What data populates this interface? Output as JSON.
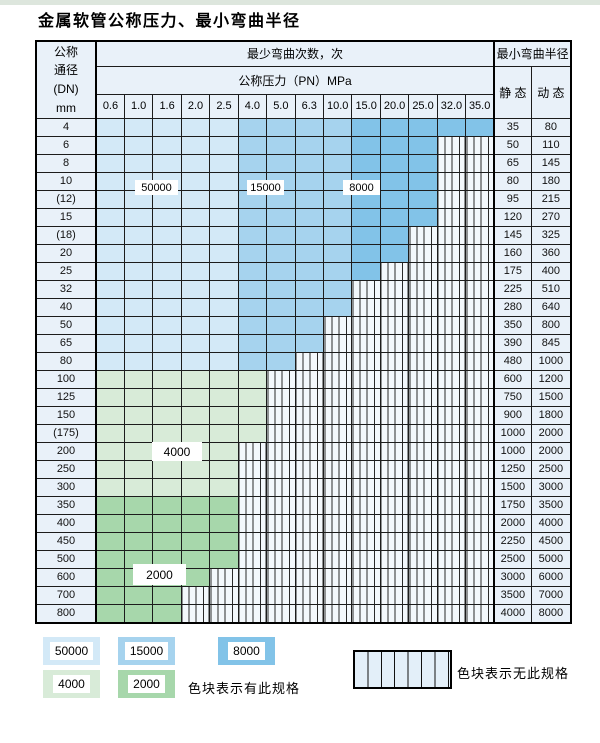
{
  "title": "金属软管公称压力、最小弯曲半径",
  "colors": {
    "c50000": "#d3e9f7",
    "c15000": "#a6d3ee",
    "c8000": "#82c3e8",
    "c4000": "#d8ebd8",
    "c2000": "#a7d7ab",
    "header_bg": "#e9f1f9",
    "hatch_bg": "#f3f8fc"
  },
  "table": {
    "corner_header": [
      "公称",
      "通径",
      "(DN)",
      "mm"
    ],
    "bend_cycles_header": "最少弯曲次数，次",
    "pressure_header": "公称压力（PN）MPa",
    "pressure_columns": [
      "0.6",
      "1.0",
      "1.6",
      "2.0",
      "2.5",
      "4.0",
      "5.0",
      "6.3",
      "10.0",
      "15.0",
      "20.0",
      "25.0",
      "32.0",
      "35.0"
    ],
    "radius_header": "最小弯曲半径",
    "static_header": "静 态",
    "dynamic_header": "动 态",
    "rows": [
      {
        "dn": "4",
        "static": "35",
        "dynamic": "80",
        "last_colored_col": 13,
        "color_group": "blue"
      },
      {
        "dn": "6",
        "static": "50",
        "dynamic": "110",
        "last_colored_col": 11,
        "color_group": "blue"
      },
      {
        "dn": "8",
        "static": "65",
        "dynamic": "145",
        "last_colored_col": 11,
        "color_group": "blue"
      },
      {
        "dn": "10",
        "static": "80",
        "dynamic": "180",
        "last_colored_col": 11,
        "color_group": "blue"
      },
      {
        "dn": "(12)",
        "static": "95",
        "dynamic": "215",
        "last_colored_col": 11,
        "color_group": "blue"
      },
      {
        "dn": "15",
        "static": "120",
        "dynamic": "270",
        "last_colored_col": 11,
        "color_group": "blue"
      },
      {
        "dn": "(18)",
        "static": "145",
        "dynamic": "325",
        "last_colored_col": 10,
        "color_group": "blue"
      },
      {
        "dn": "20",
        "static": "160",
        "dynamic": "360",
        "last_colored_col": 10,
        "color_group": "blue"
      },
      {
        "dn": "25",
        "static": "175",
        "dynamic": "400",
        "last_colored_col": 9,
        "color_group": "blue"
      },
      {
        "dn": "32",
        "static": "225",
        "dynamic": "510",
        "last_colored_col": 8,
        "color_group": "blue"
      },
      {
        "dn": "40",
        "static": "280",
        "dynamic": "640",
        "last_colored_col": 8,
        "color_group": "blue"
      },
      {
        "dn": "50",
        "static": "350",
        "dynamic": "800",
        "last_colored_col": 7,
        "color_group": "blue"
      },
      {
        "dn": "65",
        "static": "390",
        "dynamic": "845",
        "last_colored_col": 7,
        "color_group": "blue"
      },
      {
        "dn": "80",
        "static": "480",
        "dynamic": "1000",
        "last_colored_col": 6,
        "color_group": "blue"
      },
      {
        "dn": "100",
        "static": "600",
        "dynamic": "1200",
        "last_colored_col": 5,
        "color_group": "g4"
      },
      {
        "dn": "125",
        "static": "750",
        "dynamic": "1500",
        "last_colored_col": 5,
        "color_group": "g4"
      },
      {
        "dn": "150",
        "static": "900",
        "dynamic": "1800",
        "last_colored_col": 5,
        "color_group": "g4"
      },
      {
        "dn": "(175)",
        "static": "1000",
        "dynamic": "2000",
        "last_colored_col": 5,
        "color_group": "g4"
      },
      {
        "dn": "200",
        "static": "1000",
        "dynamic": "2000",
        "last_colored_col": 4,
        "color_group": "g4"
      },
      {
        "dn": "250",
        "static": "1250",
        "dynamic": "2500",
        "last_colored_col": 4,
        "color_group": "g4"
      },
      {
        "dn": "300",
        "static": "1500",
        "dynamic": "3000",
        "last_colored_col": 4,
        "color_group": "g4"
      },
      {
        "dn": "350",
        "static": "1750",
        "dynamic": "3500",
        "last_colored_col": 4,
        "color_group": "g2"
      },
      {
        "dn": "400",
        "static": "2000",
        "dynamic": "4000",
        "last_colored_col": 4,
        "color_group": "g2"
      },
      {
        "dn": "450",
        "static": "2250",
        "dynamic": "4500",
        "last_colored_col": 4,
        "color_group": "g2"
      },
      {
        "dn": "500",
        "static": "2500",
        "dynamic": "5000",
        "last_colored_col": 4,
        "color_group": "g2"
      },
      {
        "dn": "600",
        "static": "3000",
        "dynamic": "6000",
        "last_colored_col": 3,
        "color_group": "g2"
      },
      {
        "dn": "700",
        "static": "3500",
        "dynamic": "7000",
        "last_colored_col": 2,
        "color_group": "g2"
      },
      {
        "dn": "800",
        "static": "4000",
        "dynamic": "8000",
        "last_colored_col": 2,
        "color_group": "g2"
      }
    ]
  },
  "overlay_labels": {
    "l50000": "50000",
    "l15000": "15000",
    "l8000": "8000",
    "l4000": "4000",
    "l2000": "2000"
  },
  "legend": {
    "items": [
      {
        "label": "50000",
        "color": "c50000"
      },
      {
        "label": "15000",
        "color": "c15000"
      },
      {
        "label": "8000",
        "color": "c8000"
      },
      {
        "label": "4000",
        "color": "c4000"
      },
      {
        "label": "2000",
        "color": "c2000"
      }
    ],
    "has_spec_text": "色块表示有此规格",
    "no_spec_text": "色块表示无此规格"
  }
}
